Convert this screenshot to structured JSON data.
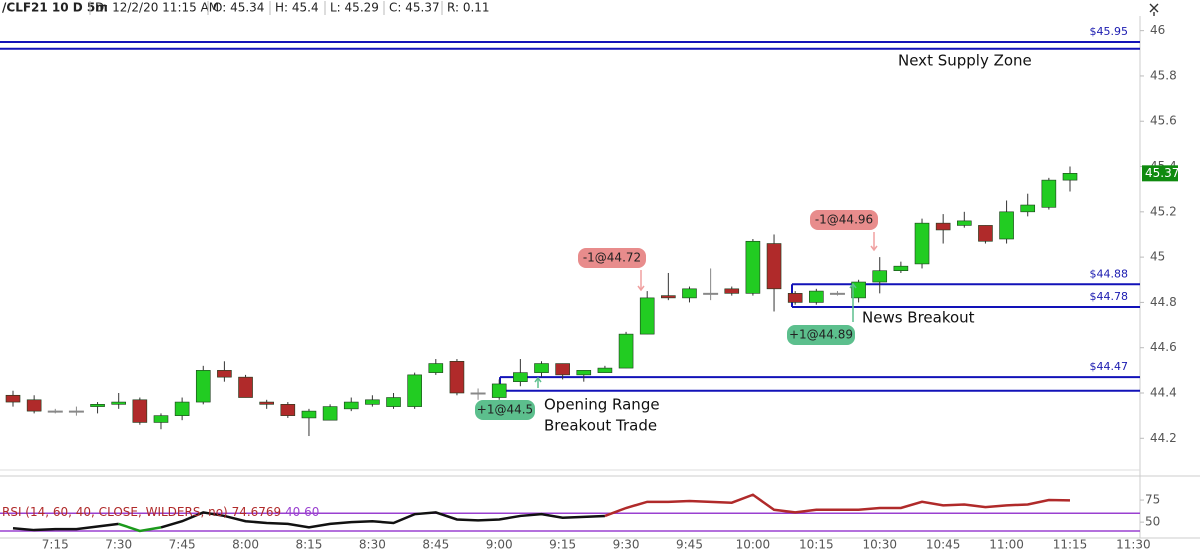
{
  "chart_data": {
    "type": "candlestick",
    "header": [
      "/CLF21 10 D 5m",
      "D: 12/2/20 11:15 AM",
      "O: 45.34",
      "H: 45.4",
      "L: 45.29",
      "C: 45.37",
      "R: 0.11"
    ],
    "categories": [
      null,
      null,
      "7:15",
      null,
      null,
      "7:30",
      null,
      null,
      "7:45",
      null,
      null,
      "8:00",
      null,
      null,
      "8:15",
      null,
      null,
      "8:30",
      null,
      null,
      "8:45",
      null,
      null,
      "9:00",
      null,
      null,
      "9:15",
      null,
      null,
      "9:30",
      null,
      null,
      "9:45",
      null,
      null,
      "10:00",
      null,
      null,
      "10:15",
      null,
      null,
      "10:30",
      null,
      null,
      "10:45",
      null,
      null,
      "11:00",
      null,
      null,
      "11:15",
      null,
      null,
      "11:30"
    ],
    "open": [
      44.39,
      44.37,
      44.32,
      44.32,
      44.34,
      44.35,
      44.37,
      44.27,
      44.3,
      44.36,
      44.5,
      44.47,
      44.36,
      44.35,
      44.29,
      44.28,
      44.33,
      44.35,
      44.34,
      44.34,
      44.49,
      44.54,
      44.4,
      44.38,
      44.45,
      44.49,
      44.53,
      44.48,
      44.49,
      44.51,
      44.66,
      44.83,
      44.82,
      44.84,
      44.86,
      44.84,
      45.06,
      44.84,
      44.8,
      44.84,
      44.82,
      44.89,
      44.94,
      44.97,
      45.15,
      45.14,
      45.14,
      45.08,
      45.2,
      45.22,
      45.34,
      null,
      null,
      null
    ],
    "high": [
      44.41,
      44.39,
      44.33,
      44.34,
      44.36,
      44.4,
      44.38,
      44.31,
      44.38,
      44.52,
      44.54,
      44.48,
      44.37,
      44.36,
      44.33,
      44.35,
      44.38,
      44.39,
      44.4,
      44.49,
      44.55,
      44.55,
      44.42,
      44.46,
      44.55,
      44.54,
      44.53,
      44.5,
      44.52,
      44.67,
      44.85,
      44.93,
      44.87,
      44.95,
      44.87,
      45.08,
      45.1,
      44.85,
      44.86,
      44.85,
      44.9,
      45.0,
      44.98,
      45.17,
      45.19,
      45.2,
      45.14,
      45.25,
      45.28,
      45.35,
      45.4,
      null,
      null,
      null
    ],
    "low": [
      44.34,
      44.31,
      44.31,
      44.3,
      44.31,
      44.33,
      44.26,
      44.24,
      44.28,
      44.35,
      44.45,
      44.38,
      44.33,
      44.29,
      44.21,
      44.28,
      44.32,
      44.34,
      44.33,
      44.33,
      44.48,
      44.39,
      44.37,
      44.37,
      44.43,
      44.47,
      44.46,
      44.45,
      44.49,
      44.51,
      44.66,
      44.81,
      44.8,
      44.81,
      44.83,
      44.83,
      44.76,
      44.79,
      44.79,
      44.83,
      44.8,
      44.84,
      44.93,
      44.95,
      45.06,
      45.13,
      45.06,
      45.06,
      45.18,
      45.21,
      45.29,
      null,
      null,
      null
    ],
    "close": [
      44.36,
      44.32,
      44.32,
      44.32,
      44.35,
      44.36,
      44.27,
      44.3,
      44.36,
      44.5,
      44.47,
      44.38,
      44.35,
      44.3,
      44.32,
      44.34,
      44.36,
      44.37,
      44.38,
      44.48,
      44.53,
      44.4,
      44.4,
      44.44,
      44.49,
      44.53,
      44.48,
      44.5,
      44.51,
      44.66,
      44.82,
      44.82,
      44.86,
      44.84,
      44.84,
      45.07,
      44.86,
      44.8,
      44.85,
      44.84,
      44.89,
      44.94,
      44.96,
      45.15,
      45.12,
      45.16,
      45.07,
      45.2,
      45.23,
      45.34,
      45.37,
      null,
      null,
      null
    ],
    "colors": {
      "up": "#22cc22",
      "down": "#b02a2a",
      "flat": "#888888",
      "level": "#1212b8"
    },
    "ylim": [
      44.06,
      46.1
    ],
    "yticks": [
      44.2,
      44.4,
      44.6,
      44.8,
      45,
      45.2,
      45.4,
      45.6,
      45.8,
      46
    ],
    "levels": [
      {
        "value": 45.95,
        "label": "$45.95"
      },
      {
        "value": 45.92
      },
      {
        "value": 44.88,
        "label": "$44.88"
      },
      {
        "value": 44.78,
        "label": "$44.78"
      },
      {
        "value": 44.47,
        "label": "$44.47"
      },
      {
        "value": 44.41
      }
    ],
    "notes": [
      "Next Supply Zone",
      "Opening Range",
      "Breakout Trade",
      "News Breakout"
    ],
    "trades": [
      "-1@44.72",
      "-1@44.96",
      "+1@44.5",
      "+1@44.89"
    ],
    "rsi": {
      "label": "RSI (14, 60, 40, CLOSE, WILDERS, no)",
      "upper": 60,
      "lower": 40,
      "ylim": [
        32,
        100
      ],
      "yticks": [
        50,
        75
      ],
      "values": [
        43,
        41,
        42,
        42,
        45,
        48,
        40,
        44,
        51,
        61,
        57,
        51,
        49,
        48,
        44,
        48,
        50,
        51,
        49,
        59,
        61,
        53,
        52,
        53,
        57,
        59,
        55,
        56,
        57,
        66,
        73,
        73,
        74,
        73,
        72,
        81,
        64,
        61,
        64,
        64,
        64,
        66,
        66,
        73,
        69,
        70,
        67,
        69,
        70,
        75,
        74.6769,
        null,
        null,
        null
      ]
    }
  }
}
